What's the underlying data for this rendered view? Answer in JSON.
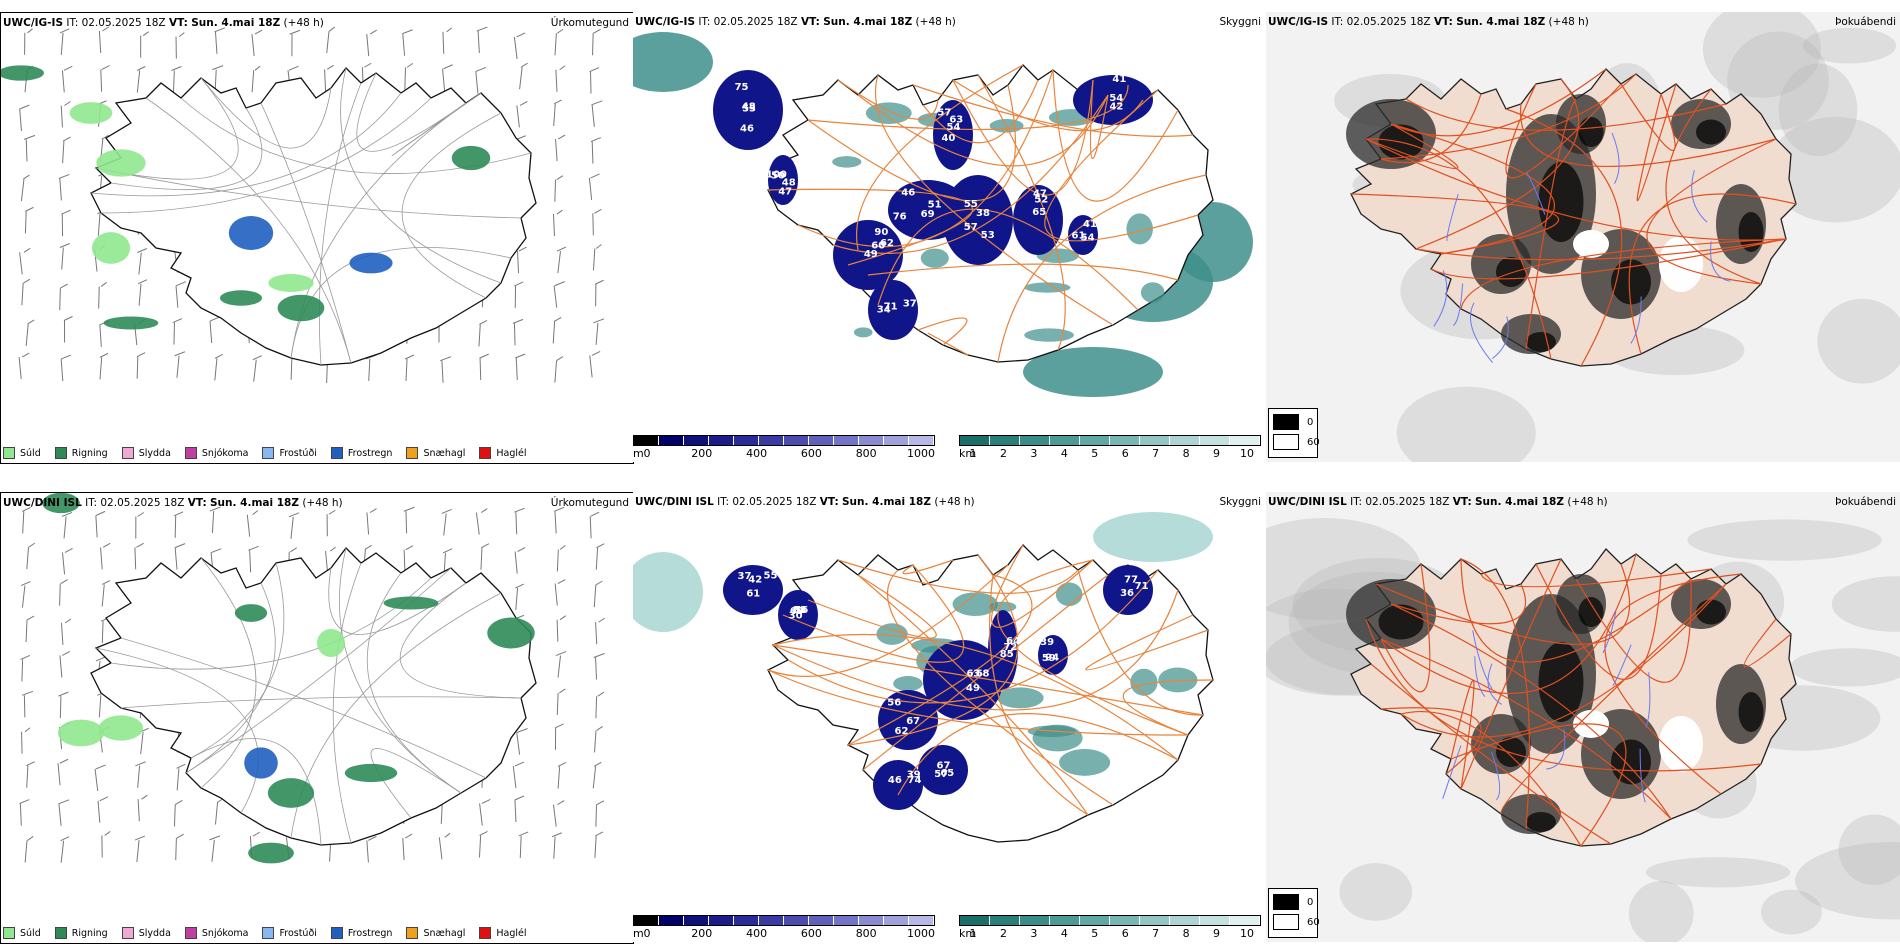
{
  "rows": [
    {
      "model": "UWC/IG-IS",
      "it_label": "IT:",
      "it_value": "02.05.2025 18Z",
      "vt_label": "VT:",
      "vt_value": "Sun. 4.mai 18Z",
      "lead": "(+48 h)",
      "precip_title": "Úrkomutegund",
      "vis_title": "Skyggni",
      "fog_title": "Þokuábendi",
      "cloud_labels": [
        {
          "t": "53"
        },
        {
          "t": "47"
        },
        {
          "t": "51"
        },
        {
          "t": "38"
        },
        {
          "t": "40"
        },
        {
          "t": "49"
        },
        {
          "t": "52"
        },
        {
          "t": "54"
        },
        {
          "t": "41"
        },
        {
          "t": "34"
        },
        {
          "t": "46"
        },
        {
          "t": "100"
        },
        {
          "t": "46"
        },
        {
          "t": "53"
        },
        {
          "t": "54"
        },
        {
          "t": "60"
        },
        {
          "t": "65"
        },
        {
          "t": "42"
        },
        {
          "t": "61"
        },
        {
          "t": "37"
        },
        {
          "t": "48"
        },
        {
          "t": "48"
        },
        {
          "t": "76"
        },
        {
          "t": "55"
        },
        {
          "t": "57"
        },
        {
          "t": "62"
        },
        {
          "t": "47"
        },
        {
          "t": "41"
        },
        {
          "t": "54"
        },
        {
          "t": "71"
        },
        {
          "t": "75"
        },
        {
          "t": "50"
        },
        {
          "t": "69"
        },
        {
          "t": "57"
        },
        {
          "t": "63"
        },
        {
          "t": "90"
        }
      ]
    },
    {
      "model": "UWC/DINI ISL",
      "it_label": "IT:",
      "it_value": "02.05.2025 18Z",
      "vt_label": "VT:",
      "vt_value": "Sun. 4.mai 18Z",
      "lead": "(+48 h)",
      "precip_title": "Úrkomutegund",
      "vis_title": "Skyggni",
      "fog_title": "Þokuábendi",
      "cloud_labels": [
        {
          "t": "55"
        },
        {
          "t": "56"
        },
        {
          "t": "49"
        },
        {
          "t": "85"
        },
        {
          "t": "67"
        },
        {
          "t": "65"
        },
        {
          "t": "36"
        },
        {
          "t": "46"
        },
        {
          "t": "59"
        },
        {
          "t": "37"
        },
        {
          "t": "30"
        },
        {
          "t": "63"
        },
        {
          "t": "64"
        },
        {
          "t": "62"
        },
        {
          "t": "67"
        },
        {
          "t": "71"
        },
        {
          "t": "39"
        },
        {
          "t": "39"
        },
        {
          "t": "42"
        },
        {
          "t": "69"
        },
        {
          "t": "68"
        },
        {
          "t": "72"
        },
        {
          "t": "56"
        },
        {
          "t": "57"
        },
        {
          "t": "77"
        },
        {
          "t": "74"
        },
        {
          "t": "94"
        },
        {
          "t": "61"
        },
        {
          "t": "88"
        }
      ]
    }
  ],
  "precip_legend": [
    {
      "label": "Súld",
      "color": "#8fe88f"
    },
    {
      "label": "Rigning",
      "color": "#2e8b57"
    },
    {
      "label": "Slydda",
      "color": "#f0a8d8"
    },
    {
      "label": "Snjókoma",
      "color": "#c040a0"
    },
    {
      "label": "Frostúði",
      "color": "#88b8f0"
    },
    {
      "label": "Frostregn",
      "color": "#2060c0"
    },
    {
      "label": "Snæhagl",
      "color": "#f0a020"
    },
    {
      "label": "Haglél",
      "color": "#e01010"
    }
  ],
  "cloud_colorbar": {
    "unit": "m",
    "ticks": [
      "0",
      "200",
      "400",
      "600",
      "800",
      "1000"
    ],
    "colors": [
      "#000000",
      "#000066",
      "#10107a",
      "#1c1c8c",
      "#2a2a98",
      "#3a3aa4",
      "#4c4cb0",
      "#6060bc",
      "#7474c6",
      "#8a8ad0",
      "#a0a0da",
      "#b8b8e6"
    ]
  },
  "vis_colorbar": {
    "unit": "km",
    "ticks": [
      "1",
      "2",
      "3",
      "4",
      "5",
      "6",
      "7",
      "8",
      "9",
      "10"
    ],
    "colors": [
      "#1c6e6a",
      "#2a7e7a",
      "#3a8c88",
      "#4c9a96",
      "#60a8a4",
      "#78b6b2",
      "#92c6c2",
      "#acd4d2",
      "#c6e2e0",
      "#e0f0ee"
    ]
  },
  "fog_legend": [
    {
      "label": "0",
      "color": "#000000"
    },
    {
      "label": "60",
      "color": "#ffffff"
    }
  ],
  "colors": {
    "land": "#f1ddd0",
    "roads": "#e05020",
    "rivers": "#6a7af0",
    "cloud_blue": "#11158a",
    "vis_teal": "#3e8f8b",
    "route_orange": "#e8843c"
  }
}
